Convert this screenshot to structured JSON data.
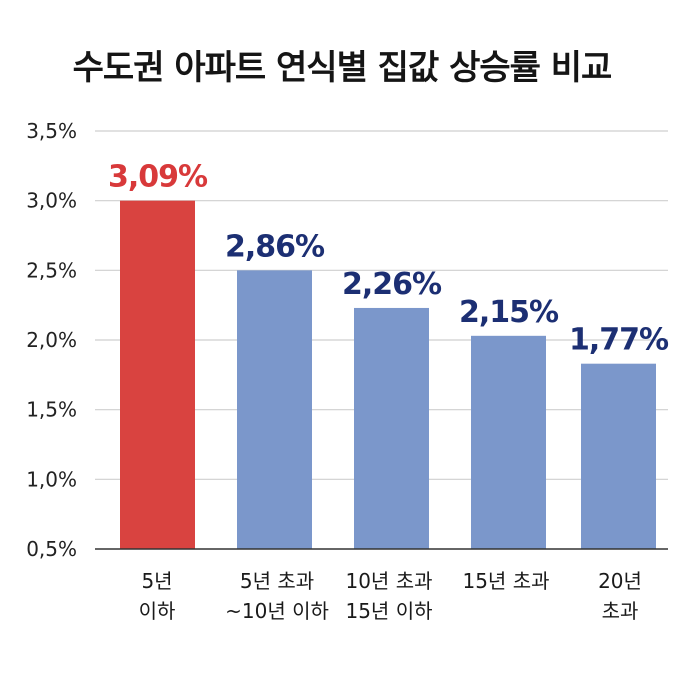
{
  "chart_data": {
    "type": "bar",
    "title": "수도권 아파트 연식별 집값 상승률 비교",
    "xlabel": "",
    "ylabel": "",
    "categories": [
      [
        "5년",
        "이하"
      ],
      [
        "5년 초과",
        "~10년 이하"
      ],
      [
        "10년 초과",
        "15년 이하"
      ],
      [
        "15년 초과"
      ],
      [
        "20년",
        "초과"
      ]
    ],
    "values": [
      3.09,
      2.86,
      2.26,
      2.15,
      1.77
    ],
    "value_labels": [
      "3,09%",
      "2,86%",
      "2,26%",
      "2,15%",
      "1,77%"
    ],
    "bar_heights_on_axis": [
      3.0,
      2.5,
      2.23,
      2.03,
      1.83
    ],
    "ylim": [
      0.5,
      3.5
    ],
    "yticks": [
      0.5,
      1.0,
      1.5,
      2.0,
      2.5,
      3.0,
      3.5
    ],
    "ytick_labels": [
      "0,5%",
      "1,0%",
      "1,5%",
      "2,0%",
      "2,5%",
      "3,0%",
      "3,5%"
    ],
    "grid": true,
    "legend": "none",
    "colors": {
      "highlight_bar": "#d94340",
      "bar": "#7b97cb",
      "highlight_label": "#d8393a",
      "label": "#1c2f73",
      "grid": "#cfcfcf",
      "axis": "#333333"
    }
  }
}
